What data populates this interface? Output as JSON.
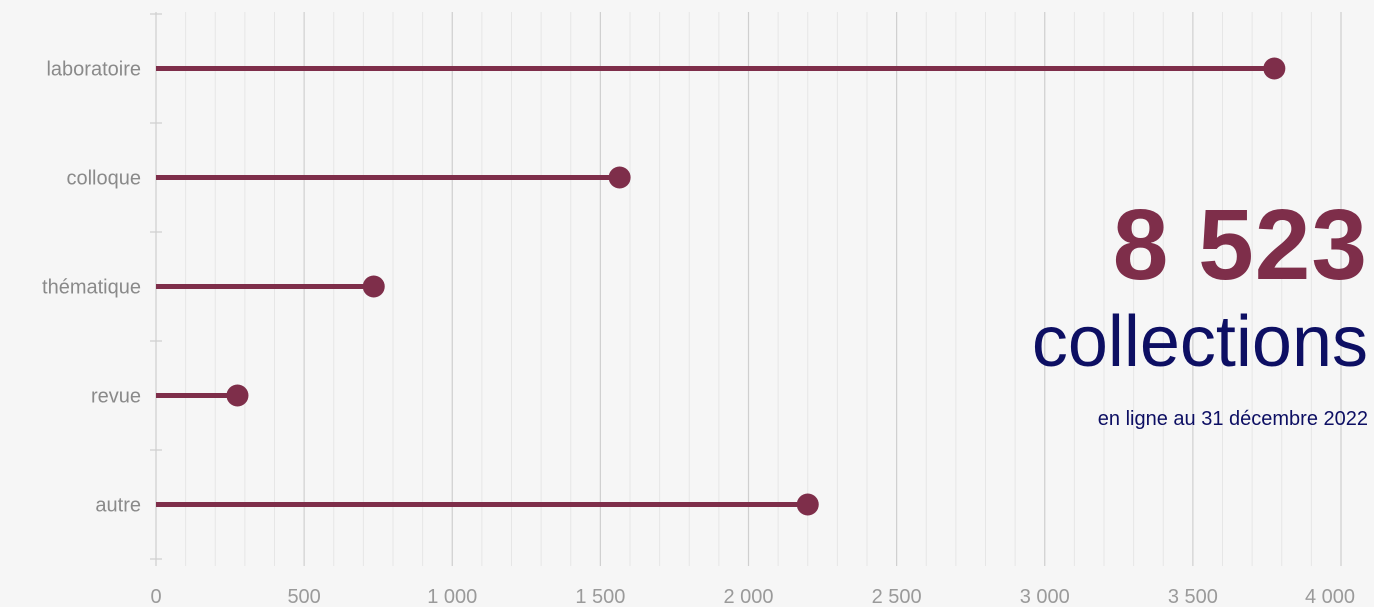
{
  "colors": {
    "accent": "#7e2e4a",
    "navy": "#0d0f63",
    "background": "#f6f6f6",
    "grid_major": "#cfcfcf",
    "grid_minor": "#e6e6e6",
    "label": "#8a8a8a"
  },
  "summary": {
    "total": "8 523",
    "unit": "collections",
    "note": "en ligne au 31 décembre 2022"
  },
  "chart_data": {
    "type": "lollipop",
    "orientation": "horizontal",
    "categories": [
      "laboratoire",
      "colloque",
      "thématique",
      "revue",
      "autre"
    ],
    "values": [
      3775,
      1565,
      735,
      275,
      2200
    ],
    "xlim": [
      0,
      4000
    ],
    "xticks": [
      0,
      500,
      1000,
      1500,
      2000,
      2500,
      3000,
      3500,
      4000
    ],
    "xtick_labels": [
      "0",
      "500",
      "1 000",
      "1 500",
      "2 000",
      "2 500",
      "3 000",
      "3 500",
      "4 000"
    ],
    "minor_step": 100,
    "grid": true
  }
}
